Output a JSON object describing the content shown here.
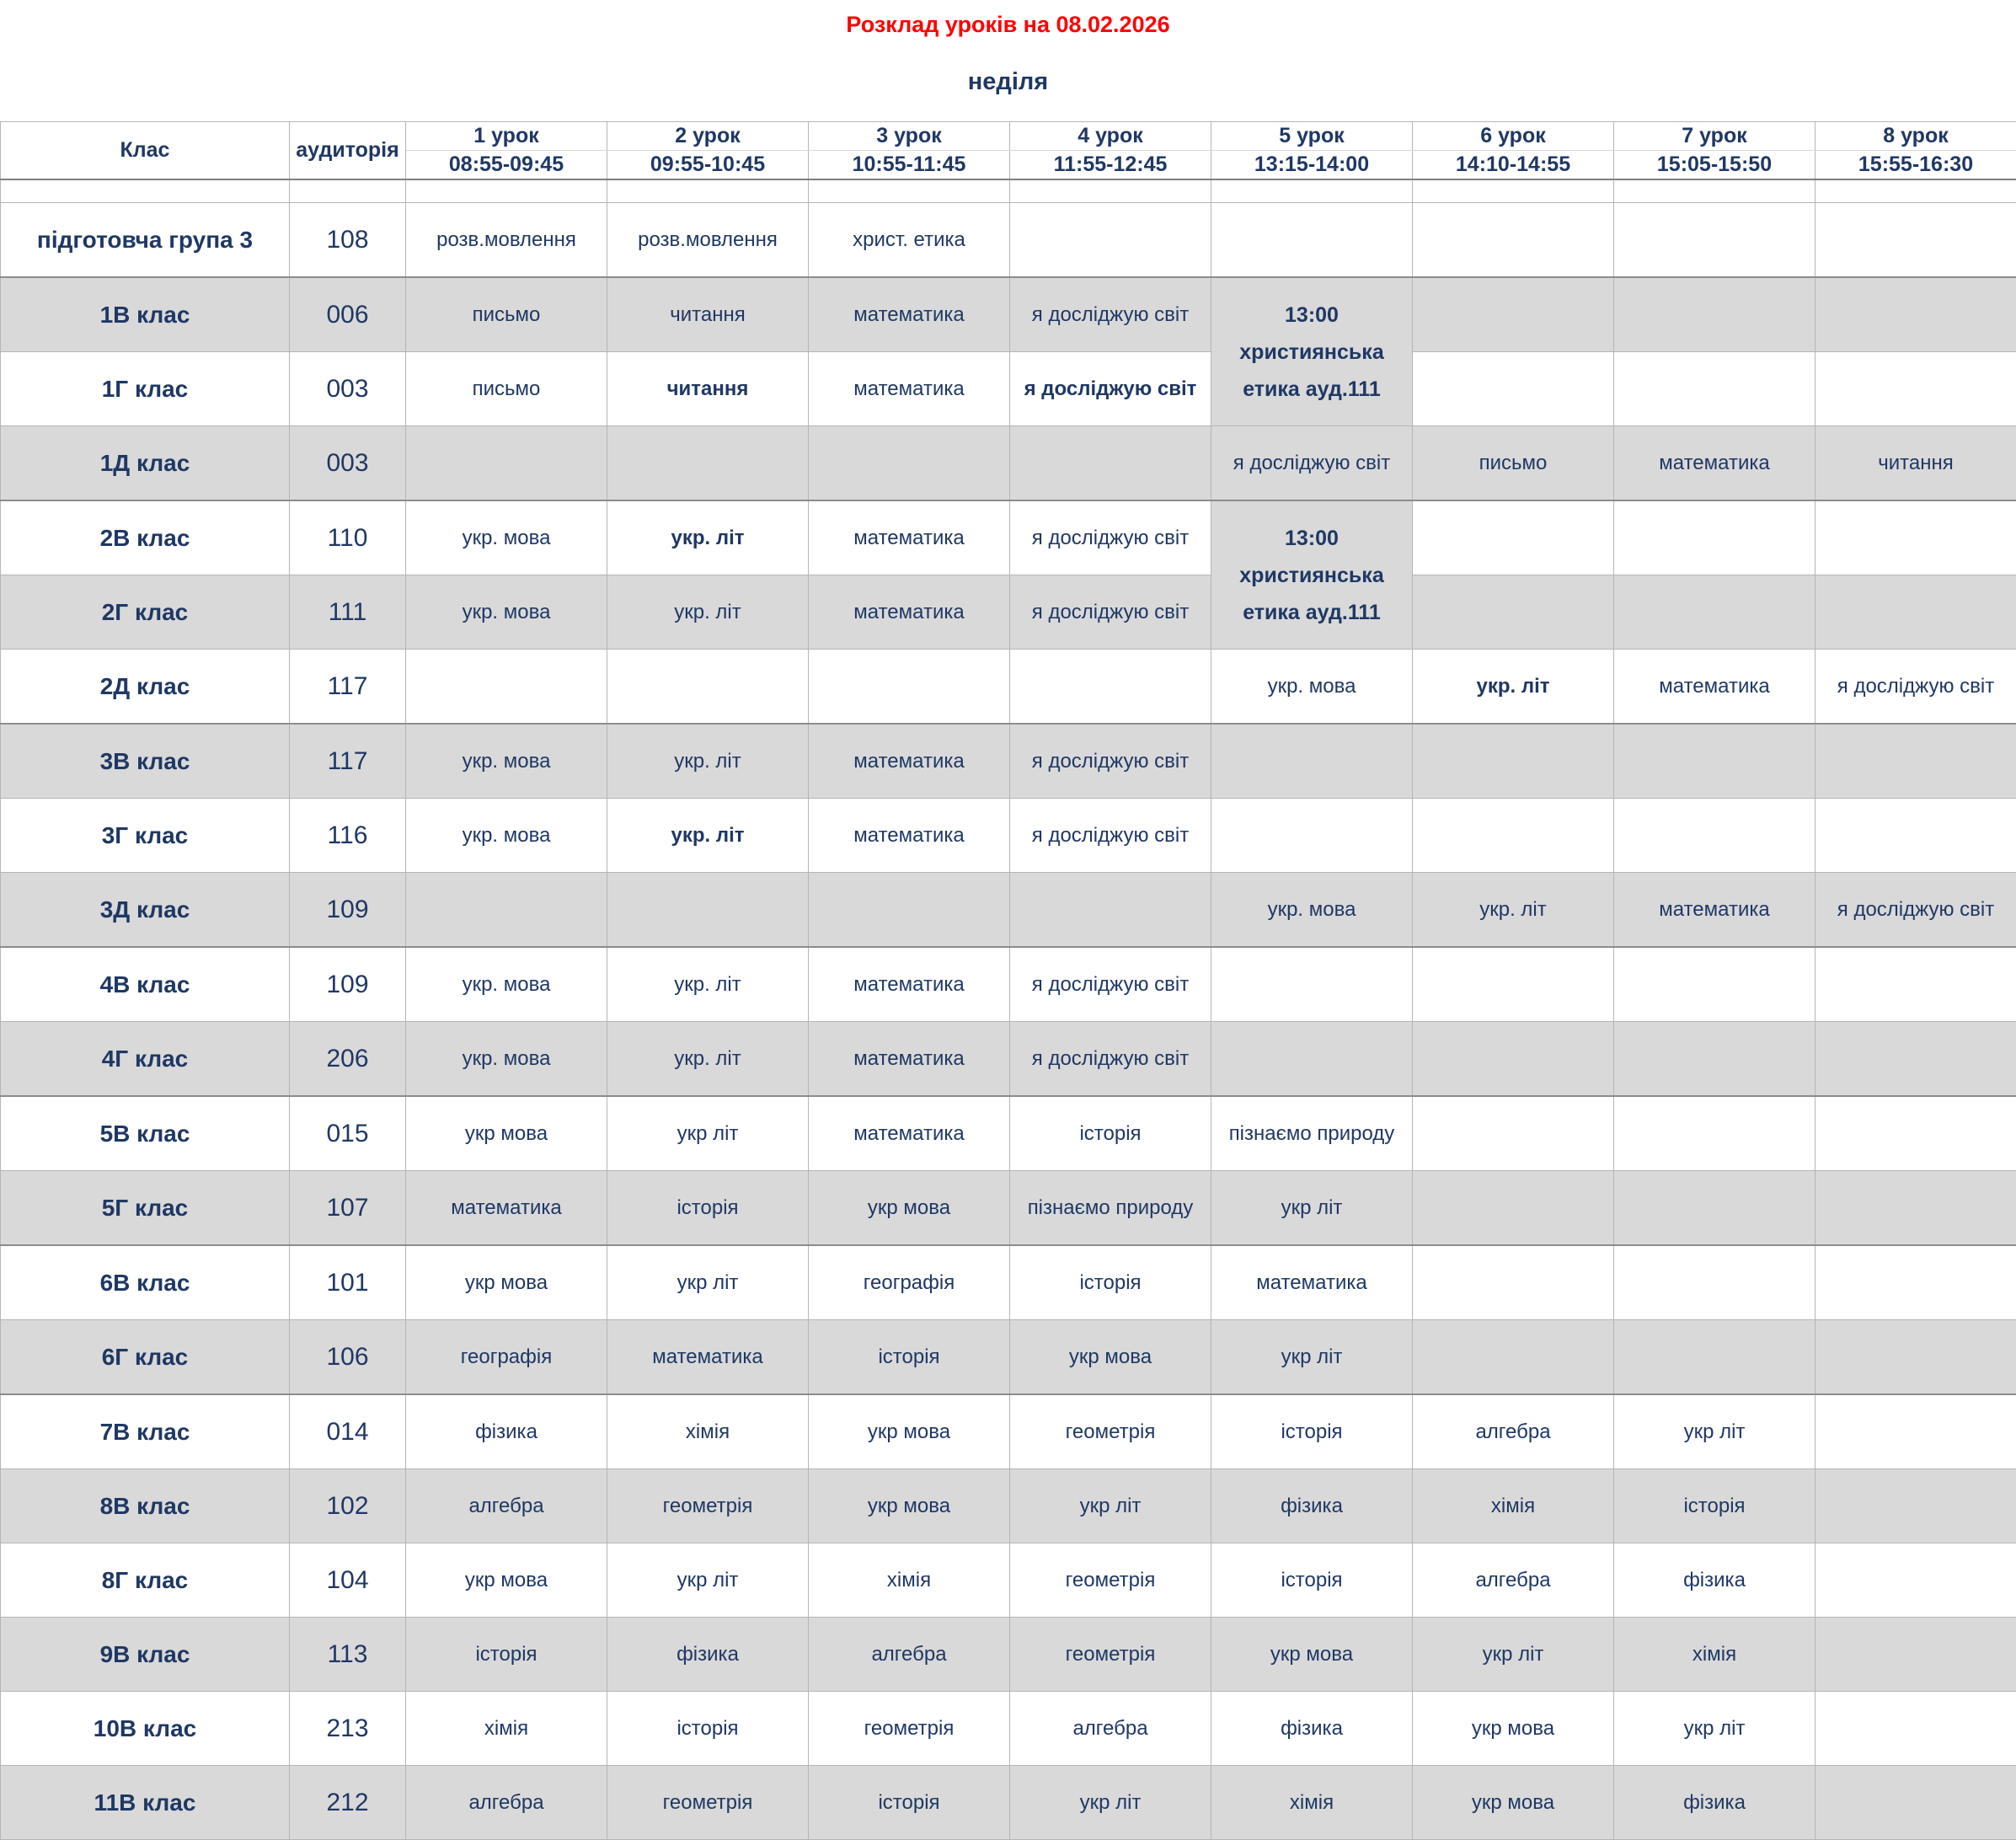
{
  "title": "Розклад уроків на 08.02.2026",
  "day": "неділя",
  "colors": {
    "title_red": "#ff0000",
    "text_navy": "#1f3864",
    "row_shade": "#d9d9d9"
  },
  "columns": {
    "class_label": "Клас",
    "room_label": "аудиторія",
    "lessons": [
      {
        "name": "1 урок",
        "time": "08:55-09:45"
      },
      {
        "name": "2 урок",
        "time": "09:55-10:45"
      },
      {
        "name": "3 урок",
        "time": "10:55-11:45"
      },
      {
        "name": "4 урок",
        "time": "11:55-12:45"
      },
      {
        "name": "5 урок",
        "time": "13:15-14:00"
      },
      {
        "name": "6 урок",
        "time": "14:10-14:55"
      },
      {
        "name": "7 урок",
        "time": "15:05-15:50"
      },
      {
        "name": "8 урок",
        "time": "15:55-16:30"
      }
    ]
  },
  "rows": [
    {
      "class": "підготовча група 3",
      "room": "108",
      "shade": false,
      "group_end": true,
      "lessons": [
        {
          "t": "розв.мовлення"
        },
        {
          "t": "розв.мовлення"
        },
        {
          "t": "христ. етика"
        },
        null,
        null,
        null,
        null,
        null
      ]
    },
    {
      "class": "1В клас",
      "room": "006",
      "shade": true,
      "group_end": false,
      "lessons": [
        {
          "t": "письмо"
        },
        {
          "t": "читання"
        },
        {
          "t": "математика"
        },
        {
          "t": "я досліджую світ"
        },
        {
          "lines": [
            "13:00",
            "християнська",
            "етика ауд.111"
          ],
          "rowspan": 2,
          "note": true
        },
        null,
        null,
        null
      ]
    },
    {
      "class": "1Г клас",
      "room": "003",
      "shade": false,
      "group_end": false,
      "lessons": [
        {
          "t": "письмо"
        },
        {
          "t": "читання",
          "bold": true
        },
        {
          "t": "математика"
        },
        {
          "t": "я досліджую світ",
          "bold": true
        },
        {
          "skip": true
        },
        null,
        null,
        null
      ]
    },
    {
      "class": "1Д клас",
      "room": "003",
      "shade": true,
      "group_end": true,
      "lessons": [
        null,
        null,
        null,
        null,
        {
          "t": "я досліджую світ"
        },
        {
          "t": "письмо"
        },
        {
          "t": "математика"
        },
        {
          "t": "читання"
        }
      ]
    },
    {
      "class": "2В клас",
      "room": "110",
      "shade": false,
      "group_end": false,
      "lessons": [
        {
          "t": "укр. мова"
        },
        {
          "t": "укр. літ",
          "bold": true
        },
        {
          "t": "математика"
        },
        {
          "t": "я досліджую світ"
        },
        {
          "lines": [
            "13:00",
            "християнська",
            "етика ауд.111"
          ],
          "rowspan": 2,
          "note": true
        },
        null,
        null,
        null
      ]
    },
    {
      "class": "2Г клас",
      "room": "111",
      "shade": true,
      "group_end": false,
      "lessons": [
        {
          "t": "укр. мова"
        },
        {
          "t": "укр. літ"
        },
        {
          "t": "математика"
        },
        {
          "t": "я досліджую світ"
        },
        {
          "skip": true
        },
        null,
        null,
        null
      ]
    },
    {
      "class": "2Д клас",
      "room": "117",
      "shade": false,
      "group_end": true,
      "lessons": [
        null,
        null,
        null,
        null,
        {
          "t": "укр. мова"
        },
        {
          "t": "укр. літ",
          "bold": true
        },
        {
          "t": "математика"
        },
        {
          "t": "я досліджую світ"
        }
      ]
    },
    {
      "class": "3В клас",
      "room": "117",
      "shade": true,
      "group_end": false,
      "lessons": [
        {
          "t": "укр. мова"
        },
        {
          "t": "укр. літ"
        },
        {
          "t": "математика"
        },
        {
          "t": "я досліджую світ"
        },
        null,
        null,
        null,
        null
      ]
    },
    {
      "class": "3Г клас",
      "room": "116",
      "shade": false,
      "group_end": false,
      "lessons": [
        {
          "t": "укр. мова"
        },
        {
          "t": "укр. літ",
          "bold": true
        },
        {
          "t": "математика"
        },
        {
          "t": "я досліджую світ"
        },
        null,
        null,
        null,
        null
      ]
    },
    {
      "class": "3Д клас",
      "room": "109",
      "shade": true,
      "group_end": true,
      "lessons": [
        null,
        null,
        null,
        null,
        {
          "t": "укр. мова"
        },
        {
          "t": "укр. літ"
        },
        {
          "t": "математика"
        },
        {
          "t": "я досліджую світ"
        }
      ]
    },
    {
      "class": "4В клас",
      "room": "109",
      "shade": false,
      "group_end": false,
      "lessons": [
        {
          "t": "укр. мова"
        },
        {
          "t": "укр. літ"
        },
        {
          "t": "математика"
        },
        {
          "t": "я досліджую світ"
        },
        null,
        null,
        null,
        null
      ]
    },
    {
      "class": "4Г клас",
      "room": "206",
      "shade": true,
      "group_end": true,
      "lessons": [
        {
          "t": "укр. мова"
        },
        {
          "t": "укр. літ"
        },
        {
          "t": "математика"
        },
        {
          "t": "я досліджую світ"
        },
        null,
        null,
        null,
        null
      ]
    },
    {
      "class": "5В клас",
      "room": "015",
      "shade": false,
      "group_end": false,
      "lessons": [
        {
          "t": "укр мова"
        },
        {
          "t": "укр літ"
        },
        {
          "t": "математика"
        },
        {
          "t": "історія"
        },
        {
          "t": "пізнаємо природу"
        },
        null,
        null,
        null
      ]
    },
    {
      "class": "5Г клас",
      "room": "107",
      "shade": true,
      "group_end": true,
      "lessons": [
        {
          "t": "математика"
        },
        {
          "t": "історія"
        },
        {
          "t": "укр мова"
        },
        {
          "t": "пізнаємо природу"
        },
        {
          "t": "укр літ"
        },
        null,
        null,
        null
      ]
    },
    {
      "class": "6В клас",
      "room": "101",
      "shade": false,
      "group_end": false,
      "lessons": [
        {
          "t": "укр мова"
        },
        {
          "t": "укр літ"
        },
        {
          "t": "географія"
        },
        {
          "t": "історія"
        },
        {
          "t": "математика"
        },
        null,
        null,
        null
      ]
    },
    {
      "class": "6Г клас",
      "room": "106",
      "shade": true,
      "group_end": true,
      "lessons": [
        {
          "t": "географія"
        },
        {
          "t": "математика"
        },
        {
          "t": "історія"
        },
        {
          "t": "укр мова"
        },
        {
          "t": "укр літ"
        },
        null,
        null,
        null
      ]
    },
    {
      "class": "7В клас",
      "room": "014",
      "shade": false,
      "group_end": false,
      "lessons": [
        {
          "t": "фізика"
        },
        {
          "t": "хімія"
        },
        {
          "t": "укр мова"
        },
        {
          "t": "геометрія"
        },
        {
          "t": "історія"
        },
        {
          "t": "алгебра"
        },
        {
          "t": "укр літ"
        },
        null
      ]
    },
    {
      "class": "8В клас",
      "room": "102",
      "shade": true,
      "group_end": false,
      "lessons": [
        {
          "t": "алгебра"
        },
        {
          "t": "геометрія"
        },
        {
          "t": "укр мова"
        },
        {
          "t": "укр літ"
        },
        {
          "t": "фізика"
        },
        {
          "t": "хімія"
        },
        {
          "t": "історія"
        },
        null
      ]
    },
    {
      "class": "8Г клас",
      "room": "104",
      "shade": false,
      "group_end": false,
      "lessons": [
        {
          "t": "укр мова"
        },
        {
          "t": "укр літ"
        },
        {
          "t": "хімія"
        },
        {
          "t": "геометрія"
        },
        {
          "t": "історія"
        },
        {
          "t": "алгебра"
        },
        {
          "t": "фізика"
        },
        null
      ]
    },
    {
      "class": "9В клас",
      "room": "113",
      "shade": true,
      "group_end": false,
      "lessons": [
        {
          "t": "історія"
        },
        {
          "t": "фізика"
        },
        {
          "t": "алгебра"
        },
        {
          "t": "геометрія"
        },
        {
          "t": "укр мова"
        },
        {
          "t": "укр літ"
        },
        {
          "t": "хімія"
        },
        null
      ]
    },
    {
      "class": "10В клас",
      "room": "213",
      "shade": false,
      "group_end": false,
      "lessons": [
        {
          "t": "хімія"
        },
        {
          "t": "історія"
        },
        {
          "t": "геометрія"
        },
        {
          "t": "алгебра"
        },
        {
          "t": "фізика"
        },
        {
          "t": "укр мова"
        },
        {
          "t": "укр літ"
        },
        null
      ]
    },
    {
      "class": "11В клас",
      "room": "212",
      "shade": true,
      "group_end": false,
      "lessons": [
        {
          "t": "алгебра"
        },
        {
          "t": "геометрія"
        },
        {
          "t": "історія"
        },
        {
          "t": "укр літ"
        },
        {
          "t": "хімія"
        },
        {
          "t": "укр мова"
        },
        {
          "t": "фізика"
        },
        null
      ]
    }
  ]
}
